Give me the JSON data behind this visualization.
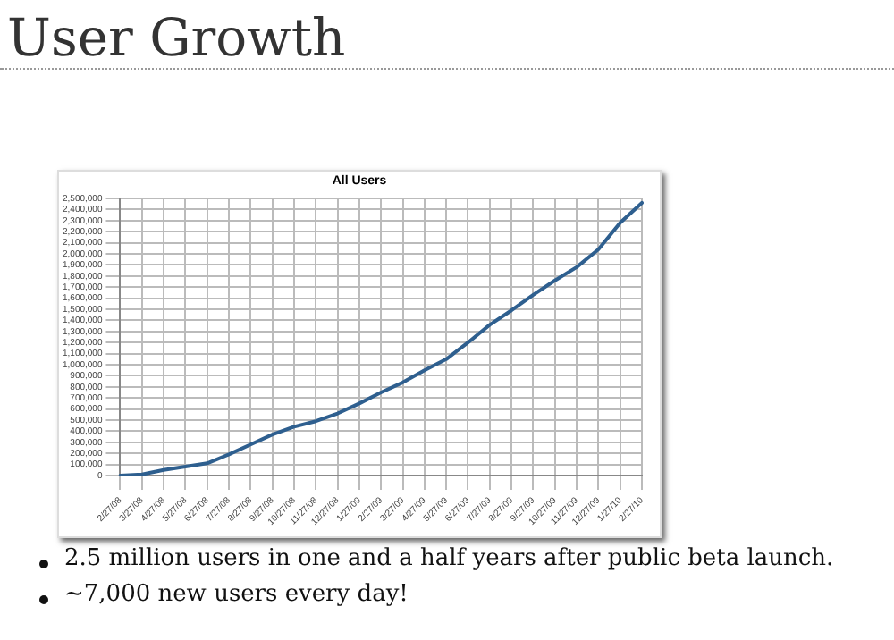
{
  "chart_data": {
    "type": "line",
    "title": "User Growth",
    "subtitle": "All Users",
    "categories": [
      "2/27/08",
      "3/27/08",
      "4/27/08",
      "5/27/08",
      "6/27/08",
      "7/27/08",
      "8/27/08",
      "9/27/08",
      "10/27/08",
      "11/27/08",
      "12/27/08",
      "1/27/09",
      "2/27/09",
      "3/27/09",
      "4/27/09",
      "5/27/09",
      "6/27/09",
      "7/27/09",
      "8/27/09",
      "9/27/09",
      "10/27/09",
      "11/27/09",
      "12/27/09",
      "1/27/10",
      "2/27/10"
    ],
    "series": [
      {
        "color": "#2e5f8f",
        "values": [
          0,
          10000,
          50000,
          80000,
          110000,
          190000,
          280000,
          370000,
          440000,
          490000,
          560000,
          650000,
          750000,
          840000,
          950000,
          1050000,
          1200000,
          1360000,
          1490000,
          1630000,
          1760000,
          1880000,
          2040000,
          2280000,
          2460000
        ]
      }
    ],
    "ylim": [
      0,
      2500000
    ],
    "yticks": [
      0,
      {
        "value": 100000,
        "label": "100,000"
      },
      {
        "value": 200000,
        "label": "200,000"
      },
      {
        "value": 300000,
        "label": "300,000"
      },
      {
        "value": 400000,
        "label": "400,000"
      },
      {
        "value": 500000,
        "label": "500,000"
      },
      {
        "value": 600000,
        "label": "600,000"
      },
      {
        "value": 700000,
        "label": "700,000"
      },
      {
        "value": 800000,
        "label": "800,000"
      },
      {
        "value": 900000,
        "label": "900,000"
      },
      {
        "value": 1000000,
        "label": "1,000,000"
      },
      {
        "value": 1100000,
        "label": "1,100,000"
      },
      {
        "value": 1200000,
        "label": "1,200,000"
      },
      {
        "value": 1300000,
        "label": "1,300,000"
      },
      {
        "value": 1400000,
        "label": "1,400,000"
      },
      {
        "value": 1500000,
        "label": "1,500,000"
      },
      {
        "value": 1600000,
        "label": "1,600,000"
      },
      {
        "value": 1700000,
        "label": "1,700,000"
      },
      {
        "value": 1800000,
        "label": "1,800,000"
      },
      {
        "value": 1900000,
        "label": "1,900,000"
      },
      {
        "value": 2000000,
        "label": "2,000,000"
      },
      {
        "value": 2100000,
        "label": "2,100,000"
      },
      {
        "value": 2200000,
        "label": "2,200,000"
      },
      {
        "value": 2300000,
        "label": "2,300,000"
      },
      {
        "value": 2400000,
        "label": "2,400,000"
      },
      {
        "value": 2500000,
        "label": "2,500,000"
      }
    ],
    "grid": true,
    "legend": false,
    "marker": "none",
    "line_style": "solid",
    "annotations": [
      "2.5 million users in one and a half years after public beta launch.",
      "~7,000 new users every day!"
    ]
  }
}
